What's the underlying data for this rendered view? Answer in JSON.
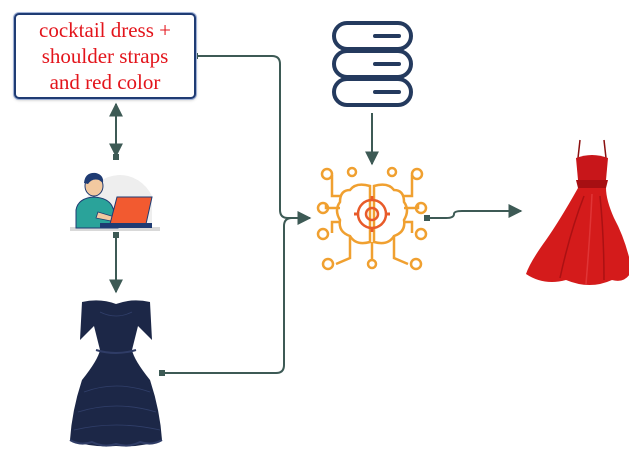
{
  "query": {
    "lines": [
      "cocktail dress +",
      "shoulder straps",
      "and red color"
    ]
  },
  "icons": {
    "user": "user-at-laptop-icon",
    "database": "database-icon",
    "model": "ai-brain-chip-icon",
    "input_image": "navy-lace-off-shoulder-dress-image",
    "output_image": "red-strap-dress-image"
  },
  "colors": {
    "query_text": "#e3141b",
    "box_border": "#1f3b73",
    "connector": "#3d5a55",
    "database": "#243a5e",
    "model": "#f0a030",
    "input_dress": "#1c2747",
    "output_dress": "#d41b1b",
    "laptop": "#f25a30",
    "user_shirt": "#2aa39a"
  }
}
